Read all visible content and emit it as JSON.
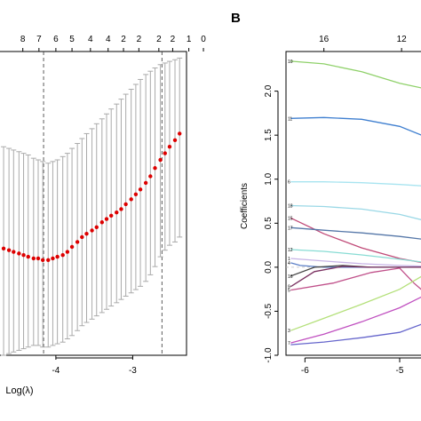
{
  "chart_data": [
    {
      "panel": "A",
      "type": "scatter",
      "xlabel": "Log(λ)",
      "ylabel": "",
      "x_ticks": [
        "-4",
        "-3"
      ],
      "xlim": [
        -4.75,
        -2.3
      ],
      "ylim": [
        0.985,
        1.17
      ],
      "top_axis_counts": [
        "8",
        "7",
        "6",
        "5",
        "4",
        "4",
        "2",
        "2",
        "2",
        "2",
        "1",
        "0"
      ],
      "top_axis_positions": [
        -4.43,
        -4.22,
        -4.0,
        -3.79,
        -3.55,
        -3.32,
        -3.12,
        -2.92,
        -2.66,
        -2.48,
        -2.27,
        -2.08
      ],
      "vertical_dashed_lines": [
        -4.16,
        -2.62
      ],
      "points": {
        "x": [
          -4.68,
          -4.61,
          -4.55,
          -4.48,
          -4.42,
          -4.36,
          -4.29,
          -4.23,
          -4.17,
          -4.1,
          -4.04,
          -3.98,
          -3.91,
          -3.85,
          -3.79,
          -3.72,
          -3.66,
          -3.6,
          -3.53,
          -3.47,
          -3.4,
          -3.34,
          -3.28,
          -3.21,
          -3.15,
          -3.09,
          -3.02,
          -2.96,
          -2.9,
          -2.83,
          -2.77,
          -2.71,
          -2.64,
          -2.58,
          -2.52,
          -2.45,
          -2.39
        ],
        "y": [
          1.05,
          1.049,
          1.048,
          1.047,
          1.046,
          1.045,
          1.044,
          1.044,
          1.043,
          1.043,
          1.044,
          1.045,
          1.046,
          1.048,
          1.051,
          1.054,
          1.057,
          1.059,
          1.061,
          1.063,
          1.066,
          1.068,
          1.07,
          1.072,
          1.074,
          1.077,
          1.08,
          1.083,
          1.086,
          1.09,
          1.094,
          1.099,
          1.104,
          1.108,
          1.112,
          1.116,
          1.12
        ],
        "err_low": [
          0.985,
          0.986,
          0.987,
          0.988,
          0.989,
          0.99,
          0.991,
          0.991,
          0.99,
          0.99,
          0.991,
          0.992,
          0.993,
          0.995,
          0.997,
          1.0,
          1.003,
          1.005,
          1.007,
          1.009,
          1.011,
          1.013,
          1.015,
          1.017,
          1.019,
          1.021,
          1.023,
          1.025,
          1.027,
          1.03,
          1.034,
          1.039,
          1.045,
          1.049,
          1.052,
          1.054,
          1.057
        ],
        "err_high": [
          1.112,
          1.111,
          1.11,
          1.109,
          1.108,
          1.107,
          1.105,
          1.104,
          1.103,
          1.102,
          1.103,
          1.104,
          1.106,
          1.108,
          1.111,
          1.114,
          1.117,
          1.12,
          1.123,
          1.126,
          1.129,
          1.132,
          1.135,
          1.138,
          1.141,
          1.144,
          1.147,
          1.15,
          1.153,
          1.156,
          1.158,
          1.16,
          1.162,
          1.163,
          1.164,
          1.165,
          1.166
        ]
      },
      "point_color": "#dd0000",
      "errorbar_color": "#aaaaaa"
    },
    {
      "panel": "B",
      "type": "line",
      "xlabel": "",
      "ylabel": "Coefficients",
      "x_ticks": [
        "-6",
        "-5"
      ],
      "y_ticks": [
        "-1.0",
        "-0.5",
        "0.0",
        "0.5",
        "1.0",
        "1.5",
        "2.0"
      ],
      "top_axis_counts": [
        "16",
        "12"
      ],
      "top_axis_positions": [
        -5.8,
        -4.98
      ],
      "xlim": [
        -6.2,
        -4.7
      ],
      "ylim": [
        -1.0,
        2.45
      ],
      "line_labels": [
        "10",
        "11",
        "6",
        "18",
        "15",
        "17",
        "12",
        "1",
        "4",
        "16",
        "9",
        "5",
        "3",
        "7"
      ],
      "series": [
        {
          "label": "10",
          "color": "#8fd16a",
          "x": [
            -6.15,
            -5.8,
            -5.4,
            -5.0,
            -4.7
          ],
          "y": [
            2.34,
            2.31,
            2.22,
            2.09,
            2.02
          ]
        },
        {
          "label": "11",
          "color": "#3f7fd0",
          "x": [
            -6.15,
            -5.8,
            -5.4,
            -5.0,
            -4.7
          ],
          "y": [
            1.69,
            1.7,
            1.68,
            1.6,
            1.47
          ]
        },
        {
          "label": "6",
          "color": "#a8e4f0",
          "x": [
            -6.15,
            -5.8,
            -5.4,
            -5.0,
            -4.7
          ],
          "y": [
            0.97,
            0.97,
            0.96,
            0.94,
            0.92
          ]
        },
        {
          "label": "18",
          "color": "#9ad8e6",
          "x": [
            -6.15,
            -5.8,
            -5.4,
            -5.0,
            -4.7
          ],
          "y": [
            0.7,
            0.69,
            0.66,
            0.6,
            0.52
          ]
        },
        {
          "label": "15",
          "color": "#c04a78",
          "x": [
            -6.15,
            -5.8,
            -5.4,
            -5.0,
            -4.7
          ],
          "y": [
            0.56,
            0.38,
            0.22,
            0.1,
            0.04
          ]
        },
        {
          "label": "17",
          "color": "#5577a8",
          "x": [
            -6.15,
            -5.8,
            -5.4,
            -5.0,
            -4.7
          ],
          "y": [
            0.45,
            0.42,
            0.39,
            0.35,
            0.31
          ]
        },
        {
          "label": "12",
          "color": "#88dcd4",
          "x": [
            -6.15,
            -5.8,
            -5.4,
            -5.0,
            -4.7
          ],
          "y": [
            0.2,
            0.18,
            0.14,
            0.09,
            0.05
          ]
        },
        {
          "label": "1",
          "color": "#c7b3e6",
          "x": [
            -6.15,
            -5.8,
            -5.4,
            -5.0,
            -4.7
          ],
          "y": [
            0.1,
            0.07,
            0.04,
            0.02,
            0.01
          ]
        },
        {
          "label": "4",
          "color": "#5b7fc7",
          "x": [
            -6.15,
            -6.05,
            -5.8,
            -5.4,
            -5.0,
            -4.7
          ],
          "y": [
            0.05,
            0.02,
            0.0,
            0.0,
            0.0,
            0.0
          ]
        },
        {
          "label": "16",
          "color": "#444444",
          "x": [
            -6.15,
            -5.9,
            -5.6,
            -5.3,
            -5.0,
            -4.7
          ],
          "y": [
            -0.1,
            0.0,
            0.02,
            0.0,
            0.0,
            0.0
          ]
        },
        {
          "label": "9",
          "color": "#7a3060",
          "x": [
            -6.15,
            -5.9,
            -5.6,
            -5.3,
            -5.0,
            -4.7
          ],
          "y": [
            -0.22,
            -0.05,
            0.01,
            0.0,
            0.0,
            0.0
          ]
        },
        {
          "label": "5",
          "color": "#c0508a",
          "x": [
            -6.15,
            -5.7,
            -5.3,
            -5.0,
            -4.85,
            -4.7
          ],
          "y": [
            -0.26,
            -0.18,
            -0.06,
            -0.01,
            -0.18,
            -0.32
          ]
        },
        {
          "label": "3",
          "color": "#b4e07a",
          "x": [
            -6.15,
            -5.8,
            -5.4,
            -5.0,
            -4.7
          ],
          "y": [
            -0.72,
            -0.58,
            -0.42,
            -0.25,
            -0.06
          ]
        },
        {
          "label": "7",
          "color": "#c050c0",
          "x": [
            -6.15,
            -5.8,
            -5.4,
            -5.0,
            -4.7
          ],
          "y": [
            -0.86,
            -0.76,
            -0.62,
            -0.46,
            -0.3
          ]
        },
        {
          "label": "",
          "color": "#6666cc",
          "x": [
            -6.15,
            -5.8,
            -5.4,
            -5.0,
            -4.7
          ],
          "y": [
            -0.88,
            -0.85,
            -0.8,
            -0.74,
            -0.62
          ]
        }
      ]
    }
  ],
  "panels": {
    "b_letter": "B"
  }
}
